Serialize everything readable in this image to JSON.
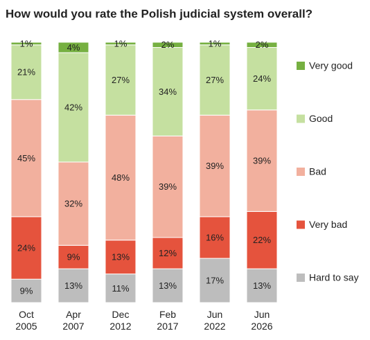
{
  "chart_data": {
    "type": "stacked_bar",
    "title": "How would you rate the Polish judicial system overall?",
    "categories": [
      "Oct 2005",
      "Apr 2007",
      "Dec 2012",
      "Feb 2017",
      "Jun 2022",
      "Jun 2026"
    ],
    "ylim": [
      0,
      100
    ],
    "series": [
      {
        "name": "Hard to say",
        "color": "#bdbdbd",
        "values": [
          9,
          13,
          11,
          13,
          17,
          13
        ],
        "value_labels": [
          "9%",
          "13%",
          "11%",
          "13%",
          "17%",
          "13%"
        ]
      },
      {
        "name": "Very bad",
        "color": "#e5533d",
        "values": [
          24,
          9,
          13,
          12,
          16,
          22
        ],
        "value_labels": [
          "24%",
          "9%",
          "13%",
          "12%",
          "16%",
          "22%"
        ]
      },
      {
        "name": "Bad",
        "color": "#f2b09e",
        "values": [
          45,
          32,
          48,
          39,
          39,
          39
        ],
        "value_labels": [
          "45%",
          "32%",
          "48%",
          "39%",
          "39%",
          "39%"
        ]
      },
      {
        "name": "Good",
        "color": "#c5e0a0",
        "values": [
          21,
          42,
          27,
          34,
          27,
          24
        ],
        "value_labels": [
          "21%",
          "42%",
          "27%",
          "34%",
          "27%",
          "24%"
        ]
      },
      {
        "name": "Very good",
        "color": "#76b041",
        "values": [
          1,
          4,
          1,
          2,
          1,
          2
        ],
        "value_labels": [
          "1%",
          "4%",
          "1%",
          "2%",
          "1%",
          "2%"
        ]
      }
    ]
  }
}
